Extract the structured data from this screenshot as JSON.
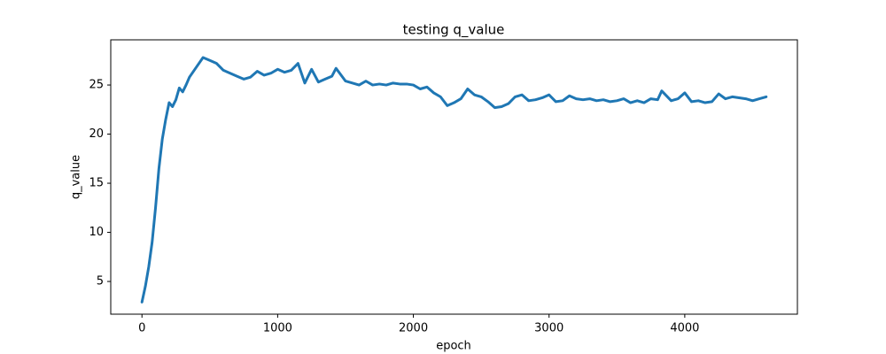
{
  "chart_data": {
    "type": "line",
    "title": "testing q_value",
    "x_label": "epoch",
    "y_label": "q_value",
    "color": "#1f77b4",
    "x": [
      0,
      25,
      50,
      75,
      100,
      125,
      150,
      175,
      200,
      225,
      250,
      275,
      300,
      325,
      350,
      400,
      450,
      500,
      550,
      600,
      650,
      700,
      750,
      800,
      850,
      900,
      950,
      1000,
      1050,
      1100,
      1150,
      1200,
      1250,
      1300,
      1350,
      1400,
      1430,
      1500,
      1550,
      1600,
      1650,
      1700,
      1750,
      1800,
      1850,
      1900,
      1950,
      2000,
      2050,
      2100,
      2150,
      2200,
      2250,
      2300,
      2350,
      2400,
      2450,
      2500,
      2550,
      2600,
      2650,
      2700,
      2750,
      2800,
      2850,
      2900,
      2950,
      3000,
      3050,
      3100,
      3150,
      3200,
      3250,
      3300,
      3350,
      3400,
      3450,
      3500,
      3550,
      3600,
      3650,
      3700,
      3750,
      3800,
      3830,
      3900,
      3950,
      4000,
      4050,
      4100,
      4150,
      4200,
      4250,
      4300,
      4350,
      4400,
      4450,
      4500,
      4550,
      4600
    ],
    "values": [
      2.9,
      4.5,
      6.5,
      9,
      12.5,
      16.5,
      19.5,
      21.5,
      23.2,
      22.8,
      23.5,
      24.7,
      24.3,
      25,
      25.8,
      26.8,
      27.8,
      27.5,
      27.2,
      26.5,
      26.2,
      25.9,
      25.6,
      25.8,
      26.4,
      26.0,
      26.2,
      26.6,
      26.3,
      26.5,
      27.2,
      25.2,
      26.6,
      25.3,
      25.6,
      25.9,
      26.7,
      25.4,
      25.2,
      25.0,
      25.4,
      25.0,
      25.1,
      25.0,
      25.2,
      25.1,
      25.1,
      25.0,
      24.6,
      24.8,
      24.2,
      23.8,
      22.9,
      23.2,
      23.6,
      24.6,
      24.0,
      23.8,
      23.3,
      22.7,
      22.8,
      23.1,
      23.8,
      24.0,
      23.4,
      23.5,
      23.7,
      24.0,
      23.3,
      23.4,
      23.9,
      23.6,
      23.5,
      23.6,
      23.4,
      23.5,
      23.3,
      23.4,
      23.6,
      23.2,
      23.4,
      23.2,
      23.6,
      23.5,
      24.4,
      23.4,
      23.6,
      24.2,
      23.3,
      23.4,
      23.2,
      23.3,
      24.1,
      23.6,
      23.8,
      23.7,
      23.6,
      23.4,
      23.6,
      23.8
    ],
    "xlim": [
      -230,
      4830
    ],
    "ylim": [
      1.67,
      29.6
    ],
    "xticks": [
      0,
      1000,
      2000,
      3000,
      4000
    ],
    "yticks": [
      5,
      10,
      15,
      20,
      25
    ]
  }
}
